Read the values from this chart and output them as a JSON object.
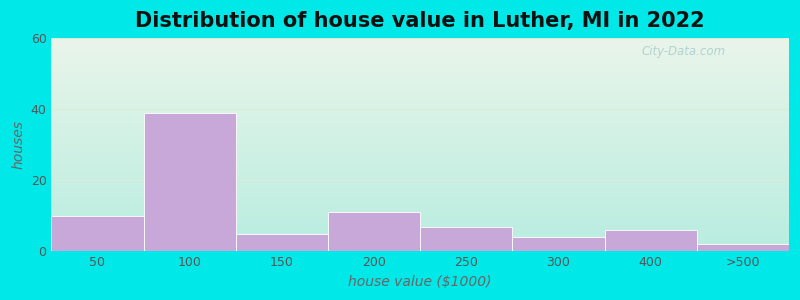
{
  "title": "Distribution of house value in Luther, MI in 2022",
  "xlabel": "house value ($1000)",
  "ylabel": "houses",
  "bar_labels": [
    "50",
    "100",
    "150",
    "200",
    "250",
    "300",
    "400",
    ">500"
  ],
  "bar_values": [
    10,
    39,
    5,
    11,
    7,
    4,
    6,
    2
  ],
  "bar_color": "#c8a8d8",
  "bar_edgecolor": "#ffffff",
  "ylim": [
    0,
    60
  ],
  "yticks": [
    0,
    20,
    40,
    60
  ],
  "background_outer": "#00e8e8",
  "background_grad_top": "#eaf5ea",
  "background_grad_bottom": "#b8ede0",
  "grid_color": "#d8eed8",
  "title_fontsize": 15,
  "axis_label_fontsize": 10,
  "tick_fontsize": 9,
  "bar_width": 1.0,
  "figsize": [
    8.0,
    3.0
  ],
  "dpi": 100
}
